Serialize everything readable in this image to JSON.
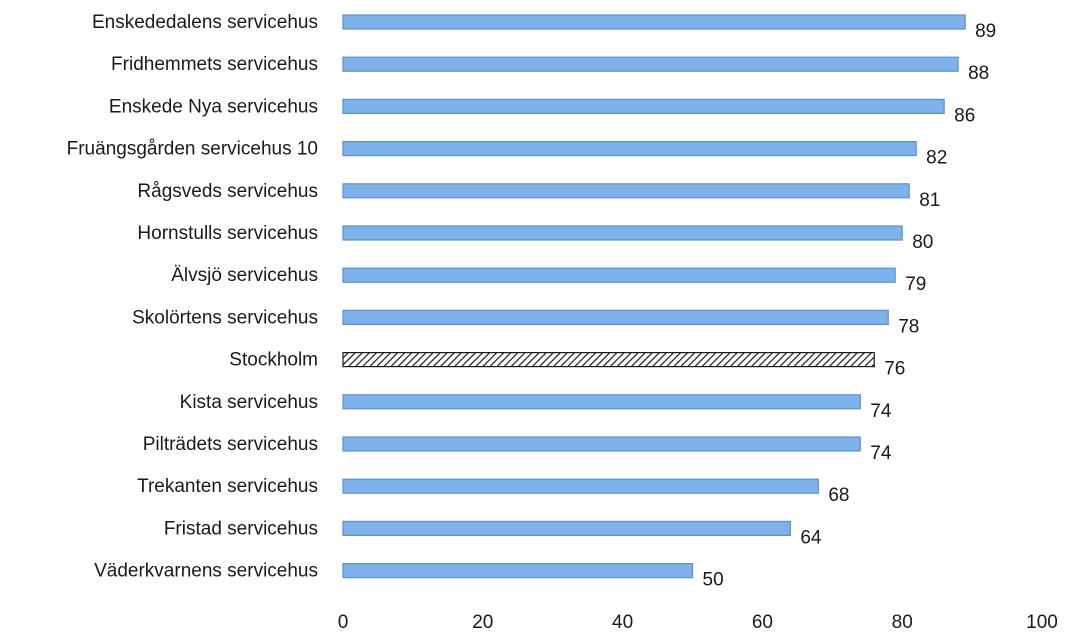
{
  "chart_data": {
    "type": "bar",
    "orientation": "horizontal",
    "title": "",
    "xlabel": "",
    "ylabel": "",
    "xlim": [
      0,
      100
    ],
    "ticks": [
      0,
      20,
      40,
      60,
      80,
      100
    ],
    "grid": false,
    "legend": "none",
    "colors": {
      "bar_fill": "#7fb2ea",
      "bar_stroke": "#5b8fd0",
      "highlight_fill": "#ffffff",
      "highlight_stroke": "#1a1a1a"
    },
    "categories": [
      "Enskededalens servicehus",
      "Fridhemmets servicehus",
      "Enskede Nya servicehus",
      "Fruängsgården servicehus 10",
      "Rågsveds servicehus",
      "Hornstulls servicehus",
      "Älvsjö servicehus",
      "Skolörtens servicehus",
      "Stockholm",
      "Kista servicehus",
      "Pilträdets servicehus",
      "Trekanten servicehus",
      "Fristad servicehus",
      "Väderkvarnens servicehus"
    ],
    "values": [
      89,
      88,
      86,
      82,
      81,
      80,
      79,
      78,
      76,
      74,
      74,
      68,
      64,
      50
    ],
    "highlighted": [
      "Stockholm"
    ]
  }
}
